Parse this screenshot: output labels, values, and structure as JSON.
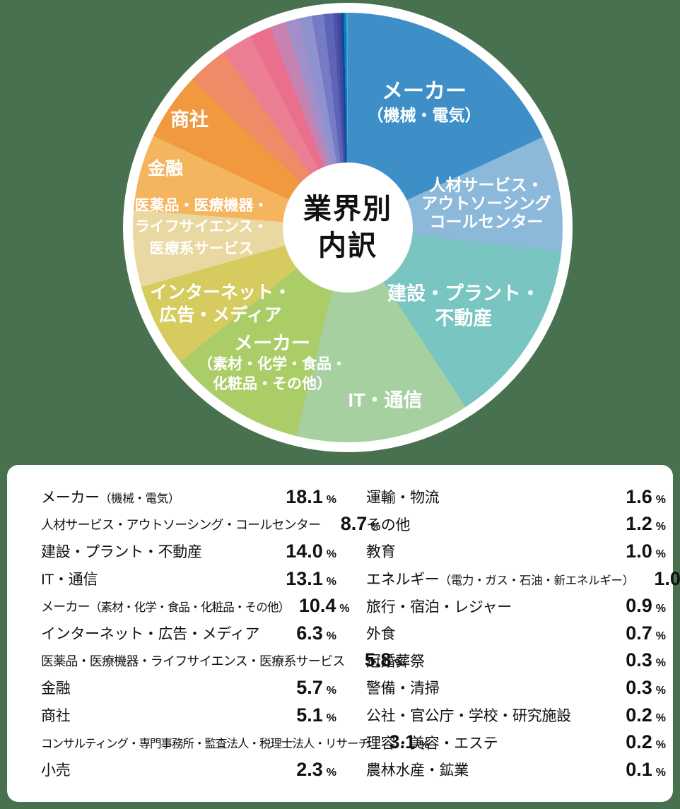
{
  "background_color": "#487150",
  "panel_color": "#ffffff",
  "center": {
    "line1": "業界別",
    "line2": "内訳"
  },
  "chart_data": {
    "type": "pie",
    "subtype": "donut",
    "title": "業界別内訳",
    "start_angle_deg": 0,
    "direction": "clockwise",
    "categories": [
      "メーカー（機械・電気）",
      "人材サービス・アウトソーシング・コールセンター",
      "建設・プラント・不動産",
      "IT・通信",
      "メーカー（素材・化学・食品・化粧品・その他）",
      "インターネット・広告・メディア",
      "医薬品・医療機器・ライフサイエンス・医療系サービス",
      "金融",
      "商社",
      "コンサルティング・専門事務所・監査法人・税理士法人・リサーチ",
      "小売",
      "運輸・物流",
      "その他",
      "教育",
      "エネルギー（電力・ガス・石油・新エネルギー）",
      "旅行・宿泊・レジャー",
      "外食",
      "冠婚葬祭",
      "警備・清掃",
      "公社・官公庁・学校・研究施設",
      "理容・美容・エステ",
      "農林水産・鉱業"
    ],
    "values": [
      18.1,
      8.7,
      14.0,
      13.1,
      10.4,
      6.3,
      5.8,
      5.7,
      5.1,
      3.1,
      2.3,
      1.6,
      1.2,
      1.0,
      1.0,
      0.9,
      0.7,
      0.3,
      0.3,
      0.2,
      0.2,
      0.1
    ],
    "colors": [
      "#3e8fc8",
      "#8cb9da",
      "#79c5c1",
      "#a6d0a0",
      "#aacd68",
      "#d5cb5e",
      "#ead8a2",
      "#f5b55f",
      "#f0993e",
      "#f08a67",
      "#eb7e93",
      "#e96f8d",
      "#c683b2",
      "#a28fca",
      "#8e93d0",
      "#757cc5",
      "#5d64b8",
      "#4d53aa",
      "#4046a0",
      "#0c4c8e",
      "#0d7ec3",
      "#54a8d6"
    ],
    "unit": "%"
  },
  "segment_labels": [
    {
      "lines": [
        {
          "t": "メーカー",
          "s": false
        },
        {
          "t": "（機械・電気）",
          "s": true
        }
      ]
    },
    {
      "lines": [
        {
          "t": "人材サービス・",
          "s": false
        },
        {
          "t": "アウトソーシング",
          "s": false
        },
        {
          "t": "コールセンター",
          "s": false
        }
      ]
    },
    {
      "lines": [
        {
          "t": "建設・プラント・",
          "s": false
        },
        {
          "t": "不動産",
          "s": false
        }
      ]
    },
    {
      "lines": [
        {
          "t": "IT・通信",
          "s": false
        }
      ]
    },
    {
      "lines": [
        {
          "t": "メーカー",
          "s": false
        },
        {
          "t": "（素材・化学・食品・",
          "s": true
        },
        {
          "t": "化粧品・その他）",
          "s": true
        }
      ]
    },
    {
      "lines": [
        {
          "t": "インターネット・",
          "s": false
        },
        {
          "t": "広告・メディア",
          "s": false
        }
      ]
    },
    {
      "lines": [
        {
          "t": "医薬品・医療機器・",
          "s": false
        },
        {
          "t": "ライフサイエンス・",
          "s": false
        },
        {
          "t": "医療系サービス",
          "s": false
        }
      ]
    },
    {
      "lines": [
        {
          "t": "金融",
          "s": false
        }
      ]
    },
    {
      "lines": [
        {
          "t": "商社",
          "s": false
        }
      ]
    }
  ],
  "legend": {
    "unit": "%",
    "left": [
      {
        "label": "メーカー",
        "sub": "（機械・電気）",
        "value": "18.1",
        "size": "normal"
      },
      {
        "label": "人材サービス・アウトソーシング・コールセンター",
        "sub": "",
        "value": "8.7",
        "size": "compact"
      },
      {
        "label": "建設・プラント・不動産",
        "sub": "",
        "value": "14.0",
        "size": "normal"
      },
      {
        "label": "IT・通信",
        "sub": "",
        "value": "13.1",
        "size": "normal"
      },
      {
        "label": "メーカー",
        "sub": "（素材・化学・食品・化粧品・その他）",
        "value": "10.4",
        "size": "compact"
      },
      {
        "label": "インターネット・広告・メディア",
        "sub": "",
        "value": "6.3",
        "size": "normal"
      },
      {
        "label": "医薬品・医療機器・ライフサイエンス・医療系サービス",
        "sub": "",
        "value": "5.8",
        "size": "compact"
      },
      {
        "label": "金融",
        "sub": "",
        "value": "5.7",
        "size": "normal"
      },
      {
        "label": "商社",
        "sub": "",
        "value": "5.1",
        "size": "normal"
      },
      {
        "label": "コンサルティング・専門事務所・監査法人・税理士法人・リサーチ",
        "sub": "",
        "value": "3.1",
        "size": "compact2"
      },
      {
        "label": "小売",
        "sub": "",
        "value": "2.3",
        "size": "normal"
      }
    ],
    "right": [
      {
        "label": "運輸・物流",
        "sub": "",
        "value": "1.6",
        "size": "normal"
      },
      {
        "label": "その他",
        "sub": "",
        "value": "1.2",
        "size": "normal"
      },
      {
        "label": "教育",
        "sub": "",
        "value": "1.0",
        "size": "normal"
      },
      {
        "label": "エネルギー",
        "sub": "（電力・ガス・石油・新エネルギー）",
        "value": "1.0",
        "size": "normal"
      },
      {
        "label": "旅行・宿泊・レジャー",
        "sub": "",
        "value": "0.9",
        "size": "normal"
      },
      {
        "label": "外食",
        "sub": "",
        "value": "0.7",
        "size": "normal"
      },
      {
        "label": "冠婚葬祭",
        "sub": "",
        "value": "0.3",
        "size": "normal"
      },
      {
        "label": "警備・清掃",
        "sub": "",
        "value": "0.3",
        "size": "normal"
      },
      {
        "label": "公社・官公庁・学校・研究施設",
        "sub": "",
        "value": "0.2",
        "size": "normal"
      },
      {
        "label": "理容・美容・エステ",
        "sub": "",
        "value": "0.2",
        "size": "normal"
      },
      {
        "label": "農林水産・鉱業",
        "sub": "",
        "value": "0.1",
        "size": "normal"
      }
    ]
  }
}
